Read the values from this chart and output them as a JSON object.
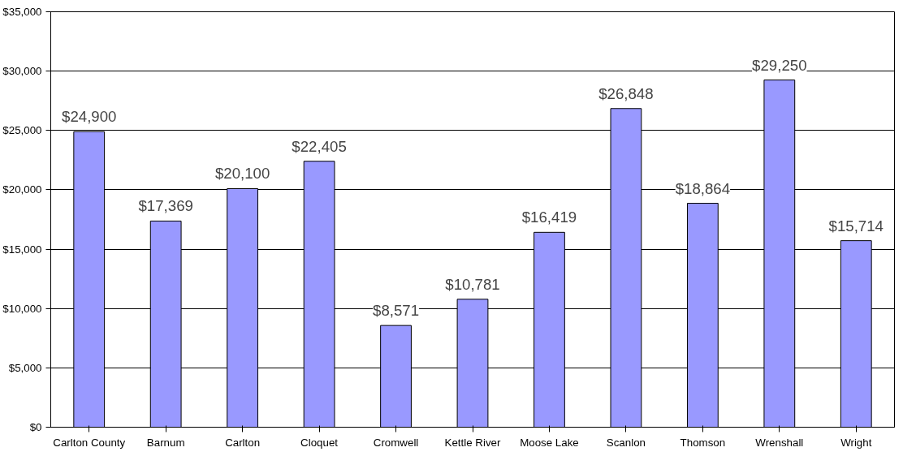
{
  "chart_data": {
    "type": "bar",
    "categories": [
      "Carlton County",
      "Barnum",
      "Carlton",
      "Cloquet",
      "Cromwell",
      "Kettle River",
      "Moose Lake",
      "Scanlon",
      "Thomson",
      "Wrenshall",
      "Wright"
    ],
    "values": [
      24900,
      17369,
      20100,
      22405,
      8571,
      10781,
      16419,
      26848,
      18864,
      29250,
      15714
    ],
    "value_labels": [
      "$24,900",
      "$17,369",
      "$20,100",
      "$22,405",
      "$8,571",
      "$10,781",
      "$16,419",
      "$26,848",
      "$18,864",
      "$29,250",
      "$15,714"
    ],
    "color": "#9999ff",
    "ylim": [
      0,
      35000
    ],
    "yticks": [
      {
        "value": 0,
        "label": "$0"
      },
      {
        "value": 5000,
        "label": "$5,000"
      },
      {
        "value": 10000,
        "label": "$10,000"
      },
      {
        "value": 15000,
        "label": "$15,000"
      },
      {
        "value": 20000,
        "label": "$20,000"
      },
      {
        "value": 25000,
        "label": "$25,000"
      },
      {
        "value": 30000,
        "label": "$30,000"
      },
      {
        "value": 35000,
        "label": "$35,000"
      }
    ],
    "grid": "y"
  }
}
